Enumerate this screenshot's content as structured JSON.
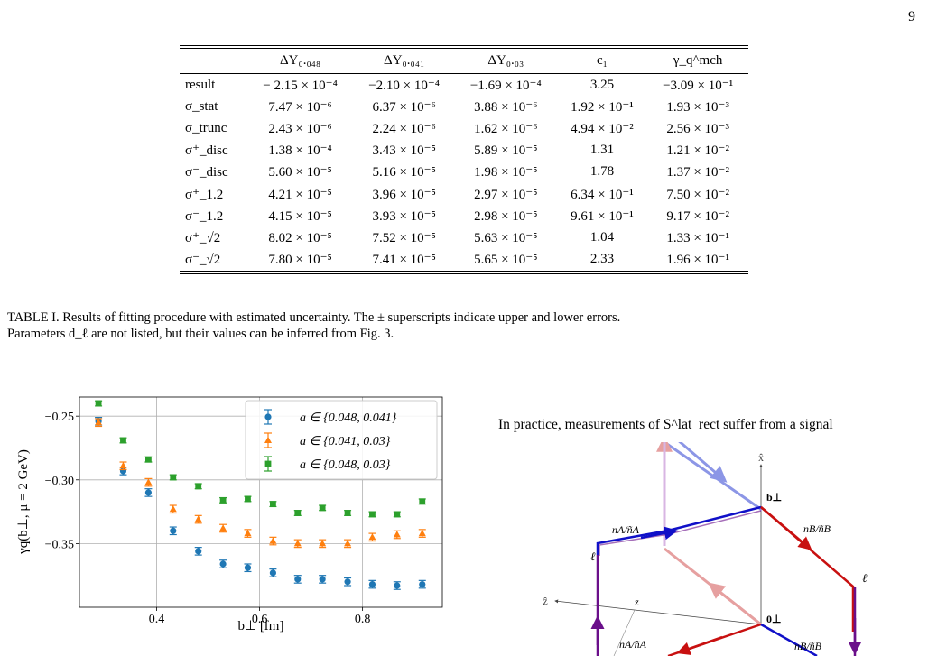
{
  "page": {
    "number": "9"
  },
  "table": {
    "headers": [
      "",
      "ΔY₀.₀₄₈",
      "ΔY₀.₀₄₁",
      "ΔY₀.₀₃",
      "c₁",
      "γ_q^mch"
    ],
    "rows": [
      {
        "label": "result",
        "values": [
          "− 2.15 × 10⁻⁴",
          "−2.10 × 10⁻⁴",
          "−1.69 × 10⁻⁴",
          "3.25",
          "−3.09 × 10⁻¹"
        ]
      },
      {
        "label": "σ_stat",
        "values": [
          "7.47 × 10⁻⁶",
          "6.37 × 10⁻⁶",
          "3.88 × 10⁻⁶",
          "1.92 × 10⁻¹",
          "1.93 × 10⁻³"
        ]
      },
      {
        "label": "σ_trunc",
        "values": [
          "2.43 × 10⁻⁶",
          "2.24 × 10⁻⁶",
          "1.62 × 10⁻⁶",
          "4.94 × 10⁻²",
          "2.56 × 10⁻³"
        ]
      },
      {
        "label": "σ⁺_disc",
        "values": [
          "1.38 × 10⁻⁴",
          "3.43 × 10⁻⁵",
          "5.89 × 10⁻⁵",
          "1.31",
          "1.21 × 10⁻²"
        ]
      },
      {
        "label": "σ⁻_disc",
        "values": [
          "5.60 × 10⁻⁵",
          "5.16 × 10⁻⁵",
          "1.98 × 10⁻⁵",
          "1.78",
          "1.37 × 10⁻²"
        ]
      },
      {
        "label": "σ⁺_1.2",
        "values": [
          "4.21 × 10⁻⁵",
          "3.96 × 10⁻⁵",
          "2.97 × 10⁻⁵",
          "6.34 × 10⁻¹",
          "7.50 × 10⁻²"
        ]
      },
      {
        "label": "σ⁻_1.2",
        "values": [
          "4.15 × 10⁻⁵",
          "3.93 × 10⁻⁵",
          "2.98 × 10⁻⁵",
          "9.61 × 10⁻¹",
          "9.17 × 10⁻²"
        ]
      },
      {
        "label": "σ⁺_√2",
        "values": [
          "8.02 × 10⁻⁵",
          "7.52 × 10⁻⁵",
          "5.63 × 10⁻⁵",
          "1.04",
          "1.33 × 10⁻¹"
        ]
      },
      {
        "label": "σ⁻_√2",
        "values": [
          "7.80 × 10⁻⁵",
          "7.41 × 10⁻⁵",
          "5.65 × 10⁻⁵",
          "2.33",
          "1.96 × 10⁻¹"
        ]
      }
    ]
  },
  "caption": {
    "line1": "TABLE I. Results of fitting procedure with estimated uncertainty.  The ± superscripts indicate upper and lower errors.",
    "line2": "Parameters d_ℓ are not listed, but their values can be inferred from Fig. 3."
  },
  "side_text": "In practice, measurements of S^lat_rect suffer from a signal",
  "chart_data": {
    "type": "scatter",
    "xlabel": "b⊥ [fm]",
    "ylabel": "γq(b⊥, μ = 2 GeV)",
    "xlim": [
      0.25,
      0.955
    ],
    "ylim": [
      -0.4,
      -0.235
    ],
    "xticks": [
      "0.4",
      "0.6",
      "0.8"
    ],
    "yticks": [
      "−0.25",
      "−0.30",
      "−0.35"
    ],
    "grid": true,
    "legend_position": "top-right",
    "series": [
      {
        "name": "a ∈ {0.048, 0.041}",
        "color": "#1f77b4",
        "marker": "circle",
        "x": [
          0.287,
          0.335,
          0.384,
          0.432,
          0.481,
          0.529,
          0.577,
          0.626,
          0.674,
          0.722,
          0.771,
          0.819,
          0.867,
          0.916
        ],
        "y": [
          -0.254,
          -0.293,
          -0.31,
          -0.34,
          -0.356,
          -0.366,
          -0.369,
          -0.373,
          -0.378,
          -0.378,
          -0.38,
          -0.382,
          -0.383,
          -0.382
        ],
        "err": [
          0.003,
          0.003,
          0.003,
          0.003,
          0.003,
          0.003,
          0.003,
          0.003,
          0.003,
          0.003,
          0.003,
          0.003,
          0.003,
          0.003
        ]
      },
      {
        "name": "a ∈ {0.041, 0.03}",
        "color": "#ff7f0e",
        "marker": "triangle",
        "x": [
          0.287,
          0.335,
          0.384,
          0.432,
          0.481,
          0.529,
          0.577,
          0.626,
          0.674,
          0.722,
          0.771,
          0.819,
          0.867,
          0.916
        ],
        "y": [
          -0.255,
          -0.289,
          -0.302,
          -0.323,
          -0.331,
          -0.338,
          -0.342,
          -0.348,
          -0.35,
          -0.35,
          -0.35,
          -0.345,
          -0.343,
          -0.342
        ],
        "err": [
          0.003,
          0.003,
          0.003,
          0.003,
          0.003,
          0.003,
          0.003,
          0.003,
          0.003,
          0.003,
          0.003,
          0.003,
          0.003,
          0.003
        ]
      },
      {
        "name": "a ∈ {0.048, 0.03}",
        "color": "#2ca02c",
        "marker": "square",
        "x": [
          0.287,
          0.335,
          0.384,
          0.432,
          0.481,
          0.529,
          0.577,
          0.626,
          0.674,
          0.722,
          0.771,
          0.819,
          0.867,
          0.916
        ],
        "y": [
          -0.24,
          -0.269,
          -0.284,
          -0.298,
          -0.305,
          -0.316,
          -0.315,
          -0.319,
          -0.326,
          -0.322,
          -0.326,
          -0.327,
          -0.327,
          -0.317
        ],
        "err": [
          0.002,
          0.002,
          0.002,
          0.002,
          0.002,
          0.002,
          0.002,
          0.002,
          0.002,
          0.002,
          0.002,
          0.002,
          0.002,
          0.002
        ]
      }
    ]
  },
  "diagram": {
    "labels": {
      "x_axis": "x̂",
      "z_axis": "ẑ",
      "b_perp": "b⊥",
      "zero_perp": "0⊥",
      "z": "z",
      "ell_left": "ℓ",
      "ell_right": "ℓ",
      "nA_top": "nA/ñA",
      "nB_top": "nB/ñB",
      "nA_bottom": "nA/ñA",
      "nB_bottom": "nB/ñB"
    },
    "colors": {
      "blue": "#1010c8",
      "red": "#c81010",
      "purple": "#6a0f8a",
      "light_blue": "#8c96e6",
      "light_red": "#e6a0a0"
    }
  }
}
